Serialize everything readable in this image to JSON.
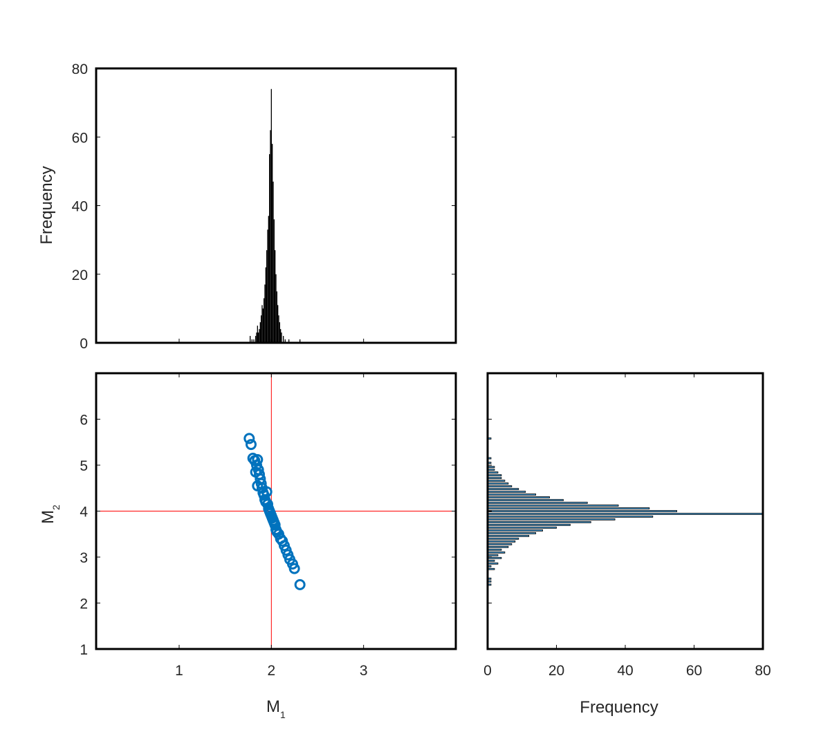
{
  "chart_data": [
    {
      "type": "bar",
      "name": "histogram-m1",
      "xlabel": "",
      "ylabel": "Frequency",
      "xlim": [
        0.1,
        4.0
      ],
      "ylim": [
        0,
        80
      ],
      "yticks": [
        "0",
        "20",
        "40",
        "60",
        "80"
      ],
      "bin_width": 0.01,
      "bar_color": "#000000",
      "bins": [
        [
          1.77,
          2
        ],
        [
          1.79,
          1
        ],
        [
          1.81,
          1
        ],
        [
          1.83,
          2
        ],
        [
          1.84,
          3
        ],
        [
          1.85,
          5
        ],
        [
          1.86,
          3
        ],
        [
          1.87,
          4
        ],
        [
          1.88,
          6
        ],
        [
          1.89,
          8
        ],
        [
          1.9,
          11
        ],
        [
          1.91,
          10
        ],
        [
          1.92,
          13
        ],
        [
          1.93,
          17
        ],
        [
          1.94,
          22
        ],
        [
          1.95,
          27
        ],
        [
          1.96,
          33
        ],
        [
          1.97,
          37
        ],
        [
          1.98,
          55
        ],
        [
          1.99,
          62
        ],
        [
          2.0,
          74
        ],
        [
          2.01,
          58
        ],
        [
          2.02,
          47
        ],
        [
          2.03,
          36
        ],
        [
          2.04,
          27
        ],
        [
          2.05,
          20
        ],
        [
          2.06,
          15
        ],
        [
          2.07,
          11
        ],
        [
          2.08,
          8
        ],
        [
          2.09,
          6
        ],
        [
          2.1,
          4
        ],
        [
          2.11,
          3
        ],
        [
          2.13,
          2
        ],
        [
          2.15,
          1
        ],
        [
          2.19,
          1
        ],
        [
          2.31,
          1
        ]
      ]
    },
    {
      "type": "scatter",
      "name": "scatter-m1-m2",
      "xlabel": "M",
      "xlabel_sub": "1",
      "ylabel": "M",
      "ylabel_sub": "2",
      "xlim": [
        0.1,
        4.0
      ],
      "ylim": [
        1,
        7
      ],
      "xticks": [
        "1",
        "2",
        "3"
      ],
      "yticks": [
        "1",
        "2",
        "3",
        "4",
        "5",
        "6"
      ],
      "marker_color": "#0072BD",
      "reference_lines": {
        "x": 2,
        "y": 4,
        "color": "#FF0000"
      },
      "points": [
        [
          1.76,
          5.58
        ],
        [
          1.78,
          5.45
        ],
        [
          1.8,
          5.15
        ],
        [
          1.82,
          5.1
        ],
        [
          1.84,
          5.0
        ],
        [
          1.85,
          5.12
        ],
        [
          1.86,
          4.9
        ],
        [
          1.83,
          4.85
        ],
        [
          1.87,
          4.8
        ],
        [
          1.88,
          4.7
        ],
        [
          1.85,
          4.55
        ],
        [
          1.89,
          4.6
        ],
        [
          1.9,
          4.5
        ],
        [
          1.91,
          4.4
        ],
        [
          1.92,
          4.35
        ],
        [
          1.95,
          4.42
        ],
        [
          1.93,
          4.25
        ],
        [
          1.94,
          4.2
        ],
        [
          1.96,
          4.15
        ],
        [
          1.97,
          4.05
        ],
        [
          1.98,
          4.0
        ],
        [
          1.99,
          3.95
        ],
        [
          2.0,
          3.9
        ],
        [
          2.01,
          3.85
        ],
        [
          2.02,
          3.8
        ],
        [
          2.03,
          3.75
        ],
        [
          2.04,
          3.7
        ],
        [
          2.05,
          3.6
        ],
        [
          2.06,
          3.55
        ],
        [
          2.08,
          3.5
        ],
        [
          2.1,
          3.4
        ],
        [
          2.12,
          3.35
        ],
        [
          2.14,
          3.25
        ],
        [
          2.16,
          3.15
        ],
        [
          2.18,
          3.05
        ],
        [
          2.2,
          2.95
        ],
        [
          2.23,
          2.85
        ],
        [
          2.25,
          2.75
        ],
        [
          2.31,
          2.4
        ]
      ]
    },
    {
      "type": "bar",
      "orientation": "horizontal",
      "name": "histogram-m2",
      "xlabel": "Frequency",
      "ylabel": "",
      "xlim": [
        0,
        80
      ],
      "ylim": [
        1,
        7
      ],
      "xticks": [
        "0",
        "20",
        "40",
        "60",
        "80"
      ],
      "bin_width": 0.03,
      "bar_color": "#4A9ED6",
      "bins": [
        [
          2.4,
          1
        ],
        [
          2.47,
          1
        ],
        [
          2.53,
          1
        ],
        [
          2.74,
          2
        ],
        [
          2.8,
          1
        ],
        [
          2.86,
          3
        ],
        [
          2.92,
          2
        ],
        [
          2.98,
          4
        ],
        [
          3.04,
          3
        ],
        [
          3.1,
          5
        ],
        [
          3.16,
          4
        ],
        [
          3.22,
          6
        ],
        [
          3.28,
          7
        ],
        [
          3.34,
          8
        ],
        [
          3.4,
          9
        ],
        [
          3.46,
          12
        ],
        [
          3.52,
          14
        ],
        [
          3.58,
          16
        ],
        [
          3.64,
          20
        ],
        [
          3.7,
          24
        ],
        [
          3.76,
          30
        ],
        [
          3.82,
          37
        ],
        [
          3.88,
          48
        ],
        [
          3.94,
          80
        ],
        [
          4.0,
          55
        ],
        [
          4.06,
          47
        ],
        [
          4.12,
          38
        ],
        [
          4.18,
          29
        ],
        [
          4.24,
          22
        ],
        [
          4.3,
          18
        ],
        [
          4.36,
          14
        ],
        [
          4.42,
          11
        ],
        [
          4.48,
          9
        ],
        [
          4.54,
          7
        ],
        [
          4.6,
          6
        ],
        [
          4.66,
          5
        ],
        [
          4.72,
          4
        ],
        [
          4.78,
          4
        ],
        [
          4.84,
          3
        ],
        [
          4.9,
          2
        ],
        [
          4.96,
          2
        ],
        [
          5.05,
          1
        ],
        [
          5.15,
          1
        ],
        [
          5.58,
          1
        ]
      ]
    }
  ]
}
